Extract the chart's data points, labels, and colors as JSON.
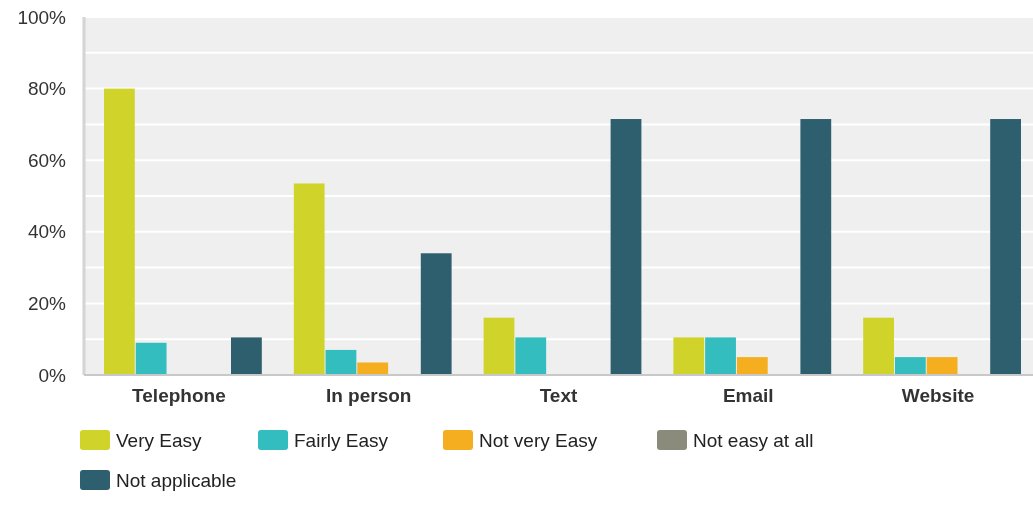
{
  "chart_data": {
    "type": "bar",
    "categories": [
      "Telephone",
      "In person",
      "Text",
      "Email",
      "Website"
    ],
    "series": [
      {
        "name": "Very Easy",
        "color": "#d0d42a",
        "values": [
          80,
          53.5,
          16,
          10.5,
          16
        ]
      },
      {
        "name": "Fairly Easy",
        "color": "#33bdbf",
        "values": [
          9,
          7,
          10.5,
          10.5,
          5
        ]
      },
      {
        "name": "Not very Easy",
        "color": "#f5ae1f",
        "values": [
          0,
          3.5,
          0,
          5,
          5
        ]
      },
      {
        "name": "Not easy at all",
        "color": "#8a8b7a",
        "values": [
          0,
          0,
          0,
          0,
          0
        ]
      },
      {
        "name": "Not applicable",
        "color": "#2e5f6e",
        "values": [
          10.5,
          34,
          71.5,
          71.5,
          71.5
        ]
      }
    ],
    "ylim": [
      0,
      100
    ],
    "yticks": [
      {
        "value": 0,
        "label": "0%"
      },
      {
        "value": 10,
        "label": null
      },
      {
        "value": 20,
        "label": "20%"
      },
      {
        "value": 30,
        "label": null
      },
      {
        "value": 40,
        "label": "40%"
      },
      {
        "value": 50,
        "label": null
      },
      {
        "value": 60,
        "label": "60%"
      },
      {
        "value": 70,
        "label": null
      },
      {
        "value": 80,
        "label": "80%"
      },
      {
        "value": 90,
        "label": null
      },
      {
        "value": 100,
        "label": "100%"
      }
    ],
    "grid": true,
    "legend": "bottom"
  }
}
